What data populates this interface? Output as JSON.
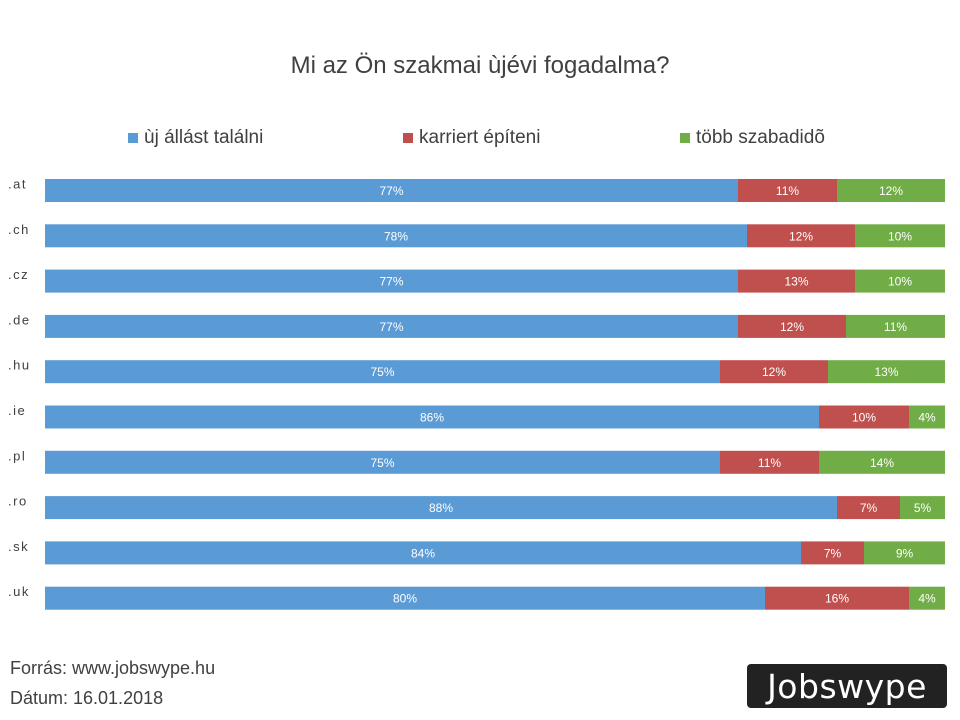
{
  "chart_data": {
    "type": "bar",
    "orientation": "horizontal",
    "stacked": true,
    "title": "Mi az Ön szakmai ùjévi fogadalma?",
    "categories": [
      ".at",
      ".ch",
      ".cz",
      ".de",
      ".hu",
      ".ie",
      ".pl",
      ".ro",
      ".sk",
      ".uk"
    ],
    "series": [
      {
        "name": "ùj állást találni",
        "color": "#5b9bd5",
        "values": [
          77,
          78,
          77,
          77,
          75,
          86,
          75,
          88,
          84,
          80
        ]
      },
      {
        "name": "karriert építeni",
        "color": "#c0504d",
        "values": [
          11,
          12,
          13,
          12,
          12,
          10,
          11,
          7,
          7,
          16
        ]
      },
      {
        "name": "több szabadidõ",
        "color": "#70ad47",
        "values": [
          12,
          10,
          10,
          11,
          13,
          4,
          14,
          5,
          9,
          4
        ]
      }
    ],
    "value_suffix": "%",
    "legend_position": "top",
    "grid": false,
    "xlim": [
      0,
      100
    ]
  },
  "footer": {
    "source": "Forrás: www.jobswype.hu",
    "date": "Dátum: 16.01.2018"
  },
  "logo_text": "Jobswype"
}
